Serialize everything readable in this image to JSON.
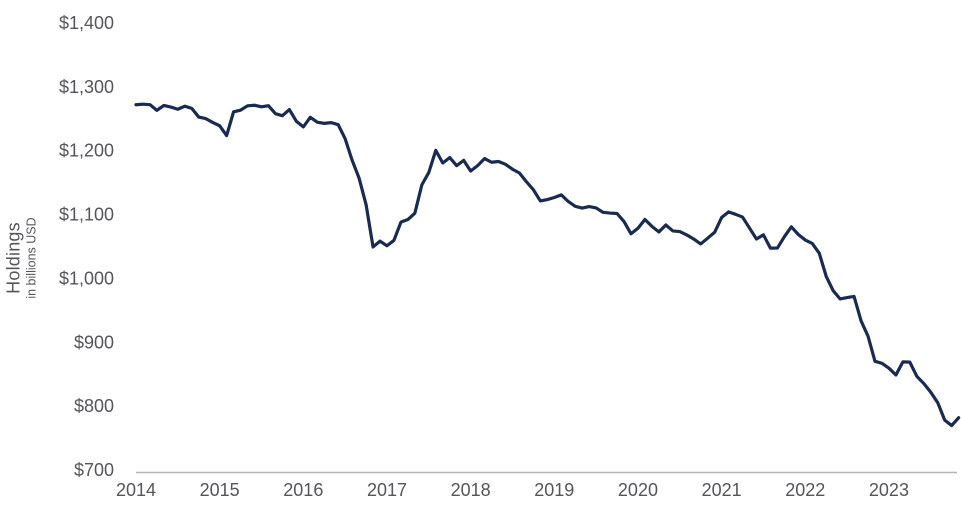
{
  "chart_data": {
    "type": "line",
    "title": "",
    "ylabel": "Holdings",
    "ylabel_sub": "in billions USD",
    "xlabel": "",
    "grid": false,
    "legend": "none",
    "ylim": [
      700,
      1400
    ],
    "xlim": [
      2014,
      2023.92
    ],
    "y_ticks": {
      "labels": [
        "$1,400",
        "$1,300",
        "$1,200",
        "$1,100",
        "$1,000",
        "$900",
        "$800",
        "$700"
      ],
      "values": [
        1400,
        1300,
        1200,
        1100,
        1000,
        900,
        800,
        700
      ]
    },
    "x_ticks": {
      "labels": [
        "2014",
        "2015",
        "2016",
        "2017",
        "2018",
        "2019",
        "2020",
        "2021",
        "2022",
        "2023"
      ],
      "values": [
        2014,
        2015,
        2016,
        2017,
        2018,
        2019,
        2020,
        2021,
        2022,
        2023
      ]
    },
    "colors": {
      "line": "#1a2b52",
      "axis_line": "#b5b5ba",
      "tick_text": "#55565a",
      "background": "#ffffff"
    },
    "series": [
      {
        "name": "holdings",
        "color": "#1a2b52",
        "start_year": 2014,
        "start_month": 1,
        "frequency": "monthly",
        "values": [
          1272.0,
          1272.9,
          1272.1,
          1263.2,
          1270.9,
          1268.4,
          1264.9,
          1269.7,
          1266.3,
          1252.7,
          1250.3,
          1244.3,
          1239.1,
          1223.7,
          1261.0,
          1263.5,
          1270.3,
          1271.2,
          1268.8,
          1270.5,
          1258.0,
          1254.8,
          1264.5,
          1246.1,
          1237.3,
          1252.3,
          1244.6,
          1242.8,
          1244.0,
          1240.8,
          1218.8,
          1185.1,
          1157.0,
          1115.7,
          1049.3,
          1058.4,
          1051.1,
          1059.7,
          1088.1,
          1092.2,
          1102.2,
          1146.5,
          1166.0,
          1200.5,
          1180.8,
          1189.2,
          1176.6,
          1184.9,
          1168.2,
          1176.7,
          1187.7,
          1181.9,
          1183.1,
          1178.7,
          1171.0,
          1165.1,
          1151.4,
          1138.9,
          1121.4,
          1123.5,
          1126.7,
          1130.9,
          1120.5,
          1113.0,
          1110.2,
          1112.5,
          1110.4,
          1103.5,
          1102.4,
          1101.7,
          1089.1,
          1069.9,
          1078.6,
          1092.3,
          1081.6,
          1072.8,
          1083.7,
          1074.4,
          1073.4,
          1068.1,
          1061.7,
          1054.0,
          1063.0,
          1072.3,
          1095.4,
          1104.2,
          1100.4,
          1096.1,
          1078.9,
          1061.8,
          1068.3,
          1047.5,
          1047.6,
          1065.4,
          1080.8,
          1068.8,
          1060.1,
          1054.8,
          1039.6,
          1003.4,
          980.8,
          967.8,
          970.0,
          971.8,
          933.6,
          909.6,
          870.2,
          867.1,
          859.4,
          848.8,
          869.3,
          868.9,
          846.7,
          835.4,
          821.8,
          805.4,
          778.1,
          769.6,
          782.0
        ]
      }
    ]
  }
}
